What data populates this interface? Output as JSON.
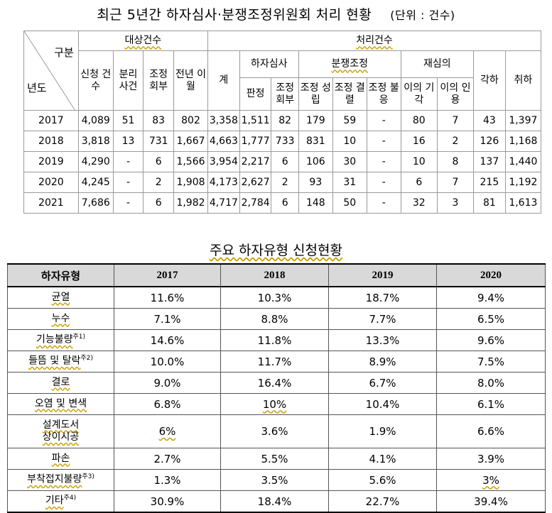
{
  "title1": "최근 5년간 하자심사·분쟁조정위원회 처리 현황",
  "title1_unit": "(단위 : 건수)",
  "t1": {
    "corner_top": "구분",
    "corner_bottom": "년도",
    "group_target": "대상건수",
    "group_processed": "처리건수",
    "col_total": "계",
    "sub_defect": "하자심사",
    "sub_dispute": "분쟁조정",
    "sub_review": "재심의",
    "col_reject": "각하",
    "col_withdraw": "취하",
    "h_apply": "신청 건수",
    "h_split": "분리 사건",
    "h_refer": "조정 회부",
    "h_carry": "전년 이월",
    "h_judge": "판정",
    "h_refer2": "조정 회부",
    "h_settle": "조정 성립",
    "h_decide": "조정 결렬",
    "h_fail": "조정 불응",
    "h_dismiss": "이의 기각",
    "h_accept": "이의 인용",
    "rows": [
      [
        "2017",
        "4,089",
        "51",
        "83",
        "802",
        "3,358",
        "1,511",
        "82",
        "179",
        "59",
        "-",
        "80",
        "7",
        "43",
        "1,397"
      ],
      [
        "2018",
        "3,818",
        "13",
        "731",
        "1,667",
        "4,663",
        "1,777",
        "733",
        "831",
        "10",
        "-",
        "16",
        "2",
        "126",
        "1,168"
      ],
      [
        "2019",
        "4,290",
        "-",
        "6",
        "1,566",
        "3,954",
        "2,217",
        "6",
        "106",
        "30",
        "-",
        "10",
        "8",
        "137",
        "1,440"
      ],
      [
        "2020",
        "4,245",
        "-",
        "2",
        "1,908",
        "4,173",
        "2,627",
        "2",
        "93",
        "31",
        "-",
        "6",
        "7",
        "215",
        "1,192"
      ],
      [
        "2021",
        "7,686",
        "-",
        "6",
        "1,982",
        "4,717",
        "2,784",
        "6",
        "148",
        "50",
        "-",
        "32",
        "3",
        "81",
        "1,613"
      ]
    ]
  },
  "title2": "주요 하자유형 신청현황",
  "t2": {
    "headers": [
      "하자유형",
      "2017",
      "2018",
      "2019",
      "2020"
    ],
    "rows": [
      {
        "type": "균열",
        "note": "",
        "vals": [
          "11.6%",
          "10.3%",
          "18.7%",
          "9.4%"
        ]
      },
      {
        "type": "누수",
        "note": "",
        "vals": [
          "7.1%",
          "8.8%",
          "7.7%",
          "6.5%"
        ]
      },
      {
        "type": "기능불량",
        "note": "주1)",
        "vals": [
          "14.6%",
          "11.8%",
          "13.3%",
          "9.6%"
        ]
      },
      {
        "type": "들뜸 및 탈락",
        "note": "주2)",
        "vals": [
          "10.0%",
          "11.7%",
          "8.9%",
          "7.5%"
        ]
      },
      {
        "type": "결로",
        "note": "",
        "vals": [
          "9.0%",
          "16.4%",
          "6.7%",
          "8.0%"
        ]
      },
      {
        "type": "오염 및 변색",
        "note": "",
        "vals": [
          "6.8%",
          "10%",
          "10.4%",
          "6.1%"
        ]
      },
      {
        "type": "설계도서",
        "type2": "상이시공",
        "note": "",
        "vals": [
          "6%",
          "3.6%",
          "1.9%",
          "6.6%"
        ]
      },
      {
        "type": "파손",
        "note": "",
        "vals": [
          "2.7%",
          "5.5%",
          "4.1%",
          "3.9%"
        ]
      },
      {
        "type": "부착접지불량",
        "note": "주3)",
        "vals": [
          "1.3%",
          "3.5%",
          "5.6%",
          "3%"
        ]
      },
      {
        "type": "기타",
        "note": "주4)",
        "vals": [
          "30.9%",
          "18.4%",
          "22.7%",
          "39.4%"
        ]
      }
    ]
  }
}
